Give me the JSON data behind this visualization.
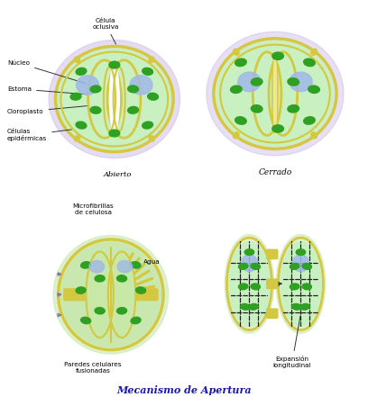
{
  "bg_color": "#ffffff",
  "light_green": "#c8f0c0",
  "dark_green": "#2ea022",
  "yellow_wall": "#d4c840",
  "blue_nucleus": "#a0b8e8",
  "purple_mf": "#8070b0",
  "epidermal_bg": "#d0c0e8",
  "mf_bg": "#c8e8b0",
  "title": "Mecanismo de Apertura",
  "label_celula": "Célula\noclusiva",
  "label_nucleo": "Núcleo",
  "label_estoma": "Estoma",
  "label_cloroplasto": "Cloroplasto",
  "label_celulas_ep": "Células\nepidérmicas",
  "label_abierto": "Abierto",
  "label_cerrado": "Cerrado",
  "label_microfibrillas": "Microfibrillas\nde celulosa",
  "label_agua": "Agua",
  "label_paredes": "Paredes celulares\nfusionadas",
  "label_expansion": "Expansión\nlongitudinal"
}
